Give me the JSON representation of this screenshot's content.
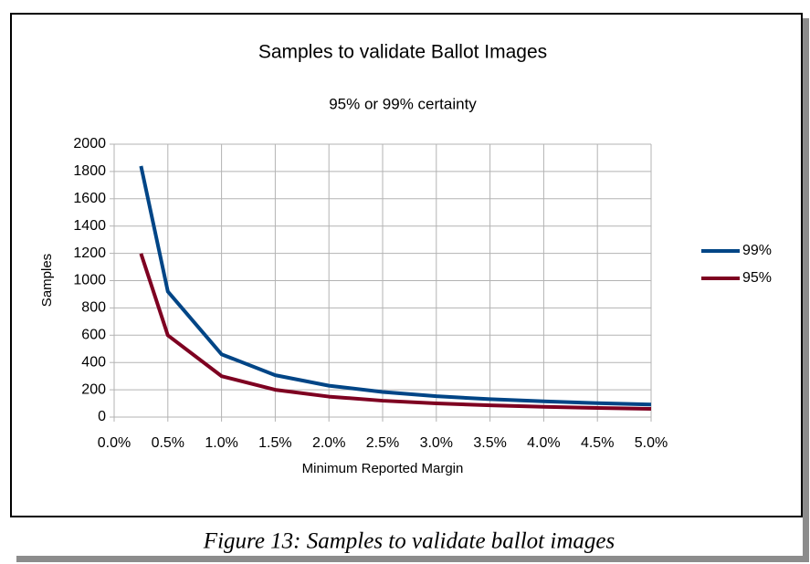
{
  "chart_data": {
    "type": "line",
    "title": "Samples to validate Ballot Images",
    "subtitle": "95% or 99% certainty",
    "xlabel": "Minimum Reported Margin",
    "ylabel": "Samples",
    "x": [
      0.25,
      0.5,
      1.0,
      1.5,
      2.0,
      2.5,
      3.0,
      3.5,
      4.0,
      4.5,
      5.0
    ],
    "series": [
      {
        "name": "99%",
        "color": "#004586",
        "values": [
          1840,
          920,
          460,
          307,
          230,
          184,
          153,
          131,
          115,
          102,
          92
        ]
      },
      {
        "name": "95%",
        "color": "#7e0021",
        "values": [
          1198,
          599,
          300,
          200,
          150,
          120,
          100,
          86,
          75,
          67,
          60
        ]
      }
    ],
    "xlim": [
      0,
      5
    ],
    "xticks": [
      {
        "value": 0,
        "label": "0.0%"
      },
      {
        "value": 0.5,
        "label": "0.5%"
      },
      {
        "value": 1,
        "label": "1.0%"
      },
      {
        "value": 1.5,
        "label": "1.5%"
      },
      {
        "value": 2,
        "label": "2.0%"
      },
      {
        "value": 2.5,
        "label": "2.5%"
      },
      {
        "value": 3,
        "label": "3.0%"
      },
      {
        "value": 3.5,
        "label": "3.5%"
      },
      {
        "value": 4,
        "label": "4.0%"
      },
      {
        "value": 4.5,
        "label": "4.5%"
      },
      {
        "value": 5,
        "label": "5.0%"
      }
    ],
    "ylim": [
      0,
      2000
    ],
    "yticks": [
      0,
      200,
      400,
      600,
      800,
      1000,
      1200,
      1400,
      1600,
      1800,
      2000
    ],
    "grid": true,
    "legend": "right",
    "caption": "Figure 13: Samples to validate ballot images"
  }
}
